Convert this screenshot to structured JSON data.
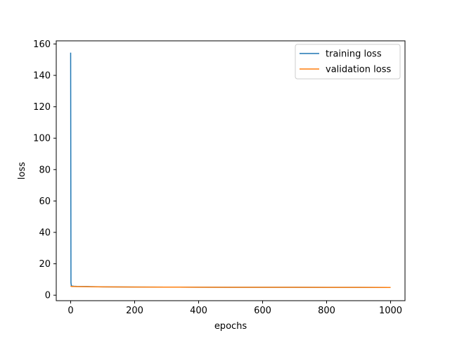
{
  "chart_data": {
    "type": "line",
    "title": "",
    "xlabel": "epochs",
    "ylabel": "loss",
    "xlim": [
      -45,
      1045
    ],
    "ylim": [
      -3.5,
      162
    ],
    "xticks": [
      0,
      200,
      400,
      600,
      800,
      1000
    ],
    "yticks": [
      0,
      20,
      40,
      60,
      80,
      100,
      120,
      140,
      160
    ],
    "grid": false,
    "legend_position": "top-right",
    "series": [
      {
        "name": "training loss",
        "color": "#1f77b4",
        "x": [
          0,
          1,
          2,
          3,
          5,
          10,
          20,
          50,
          100,
          200,
          300,
          400,
          500,
          600,
          700,
          800,
          900,
          1000
        ],
        "y": [
          154.5,
          8.0,
          6.2,
          5.9,
          5.8,
          5.7,
          5.6,
          5.5,
          5.3,
          5.2,
          5.15,
          5.1,
          5.05,
          5.0,
          5.0,
          4.95,
          4.95,
          4.9
        ]
      },
      {
        "name": "validation loss",
        "color": "#ff7f0e",
        "x": [
          0,
          1,
          2,
          3,
          5,
          10,
          20,
          50,
          100,
          200,
          300,
          400,
          500,
          600,
          700,
          800,
          900,
          1000
        ],
        "y": [
          5.9,
          5.7,
          5.6,
          5.6,
          5.55,
          5.5,
          5.45,
          5.4,
          5.3,
          5.2,
          5.15,
          5.1,
          5.05,
          5.0,
          5.0,
          4.95,
          4.95,
          4.9
        ]
      }
    ]
  }
}
